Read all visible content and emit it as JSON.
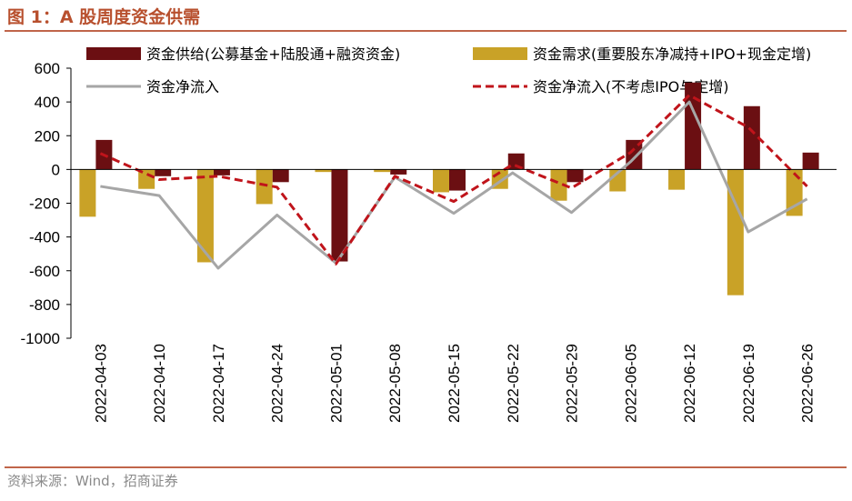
{
  "figure": {
    "title": "图 1：A 股周度资金供需",
    "source": "资料来源：Wind，招商证券"
  },
  "colors": {
    "supply": "#6B0F12",
    "demand": "#C9A227",
    "net": "#A6A6A6",
    "net_ex_ipo": "#C0141B",
    "title": "#B8502E",
    "rule": "#C0654A"
  },
  "chart_data": {
    "type": "bar",
    "title": "",
    "xlabel": "",
    "ylabel": "",
    "ylim": [
      -1000,
      600
    ],
    "yticks": [
      -1000,
      -800,
      -600,
      -400,
      -200,
      0,
      200,
      400,
      600
    ],
    "grid": false,
    "legend_position": "top",
    "categories": [
      "2022-04-03",
      "2022-04-10",
      "2022-04-17",
      "2022-04-24",
      "2022-05-01",
      "2022-05-08",
      "2022-05-15",
      "2022-05-22",
      "2022-05-29",
      "2022-06-05",
      "2022-06-12",
      "2022-06-19",
      "2022-06-26"
    ],
    "series": [
      {
        "name": "资金供给(公募基金+陆股通+融资资金)",
        "kind": "bar",
        "color": "#6B0F12",
        "values": [
          175,
          -40,
          -35,
          -75,
          -545,
          -30,
          -125,
          95,
          -75,
          175,
          515,
          375,
          100
        ]
      },
      {
        "name": "资金需求(重要股东净减持+IPO+现金定增)",
        "kind": "bar",
        "color": "#C9A227",
        "values": [
          -280,
          -115,
          -550,
          -205,
          -15,
          -15,
          -135,
          -115,
          -185,
          -130,
          -120,
          -745,
          -275
        ]
      },
      {
        "name": "资金净流入",
        "kind": "line",
        "style": "solid",
        "color": "#A6A6A6",
        "values": [
          -100,
          -155,
          -585,
          -270,
          -555,
          -45,
          -260,
          -20,
          -255,
          45,
          400,
          -370,
          -175
        ]
      },
      {
        "name": "资金净流入(不考虑IPO与定增)",
        "kind": "line",
        "style": "dashed",
        "color": "#C0141B",
        "values": [
          95,
          -60,
          -40,
          -105,
          -560,
          -40,
          -190,
          30,
          -110,
          100,
          440,
          250,
          -100
        ]
      }
    ]
  }
}
